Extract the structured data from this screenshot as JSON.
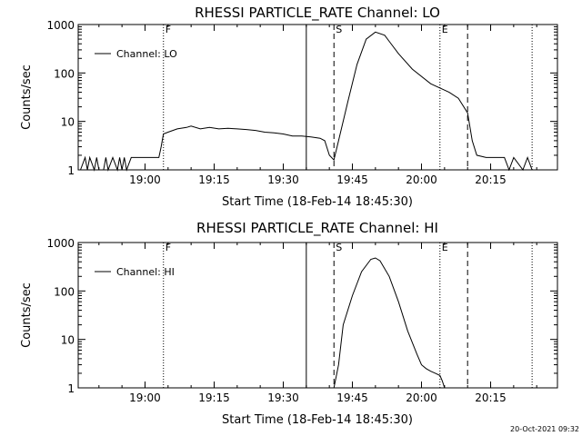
{
  "footer_timestamp": "20-Oct-2021 09:32",
  "chart_data": [
    {
      "type": "line",
      "title": "RHESSI PARTICLE_RATE Channel: LO",
      "xlabel": "Start Time (18-Feb-14 18:45:30)",
      "ylabel": "Counts/sec",
      "y_scale": "log",
      "ylim": [
        1,
        1000
      ],
      "xlim": [
        "18:45:30",
        "20:29:30"
      ],
      "x_ticks": [
        "19:00",
        "19:15",
        "19:30",
        "19:45",
        "20:00",
        "20:15"
      ],
      "y_ticks": [
        "1",
        "10",
        "100",
        "1000"
      ],
      "legend": {
        "label": "Channel: LO",
        "placement": "top-left"
      },
      "markers": [
        {
          "time": "19:04",
          "label": "F",
          "style": "dotted"
        },
        {
          "time": "19:35",
          "label": "",
          "style": "solid"
        },
        {
          "time": "19:41",
          "label": "S",
          "style": "dashed"
        },
        {
          "time": "20:04",
          "label": "E",
          "style": "dotted"
        },
        {
          "time": "20:10",
          "label": "",
          "style": "dashed"
        },
        {
          "time": "20:24",
          "label": "",
          "style": "dotted"
        }
      ],
      "series": [
        {
          "name": "Channel: LO",
          "x": [
            "18:45:30",
            "18:46:00",
            "18:47:00",
            "18:47:30",
            "18:48:00",
            "18:49:00",
            "18:49:30",
            "18:50:00",
            "18:51:00",
            "18:51:30",
            "18:52:00",
            "18:53:00",
            "18:54:00",
            "18:54:30",
            "18:55:00",
            "18:55:30",
            "18:56:00",
            "18:57:00",
            "18:58:00",
            "19:00:00",
            "19:03:00",
            "19:03:30",
            "19:04:00",
            "19:05:00",
            "19:07:00",
            "19:09:00",
            "19:10:00",
            "19:12:00",
            "19:14:00",
            "19:16:00",
            "19:18:00",
            "19:20:00",
            "19:22:00",
            "19:24:00",
            "19:26:00",
            "19:28:00",
            "19:30:00",
            "19:32:00",
            "19:34:00",
            "19:36:00",
            "19:38:00",
            "19:39:00",
            "19:40:00",
            "19:41:00",
            "19:42:00",
            "19:44:00",
            "19:46:00",
            "19:48:00",
            "19:50:00",
            "19:52:00",
            "19:53:00",
            "19:55:00",
            "19:58:00",
            "20:02:00",
            "20:06:00",
            "20:08:00",
            "20:10:00",
            "20:11:00",
            "20:12:00",
            "20:14:00",
            "20:16:00",
            "20:18:00",
            "20:19:00",
            "20:20:00",
            "20:22:00",
            "20:23:00",
            "20:24:00",
            "20:24:30"
          ],
          "y": [
            1,
            1,
            1.8,
            1,
            1.8,
            1,
            1.8,
            1,
            1,
            1.8,
            1,
            1.8,
            1,
            1.8,
            1,
            1.8,
            1,
            1.8,
            1.8,
            1.8,
            1.8,
            3,
            5.5,
            6,
            7,
            7.5,
            8,
            7,
            7.5,
            7,
            7.2,
            7,
            6.8,
            6.5,
            6,
            5.8,
            5.5,
            5,
            5,
            4.8,
            4.5,
            4,
            2,
            1.6,
            4,
            25,
            150,
            500,
            700,
            600,
            450,
            250,
            120,
            60,
            40,
            30,
            15,
            4,
            2,
            1.8,
            1.8,
            1.8,
            1,
            1.8,
            1,
            1.8,
            1,
            1
          ]
        }
      ]
    },
    {
      "type": "line",
      "title": "RHESSI PARTICLE_RATE Channel: HI",
      "xlabel": "Start Time (18-Feb-14 18:45:30)",
      "ylabel": "Counts/sec",
      "y_scale": "log",
      "ylim": [
        1,
        1000
      ],
      "xlim": [
        "18:45:30",
        "20:29:30"
      ],
      "x_ticks": [
        "19:00",
        "19:15",
        "19:30",
        "19:45",
        "20:00",
        "20:15"
      ],
      "y_ticks": [
        "1",
        "10",
        "100",
        "1000"
      ],
      "legend": {
        "label": "Channel: HI",
        "placement": "top-left"
      },
      "markers": [
        {
          "time": "19:04",
          "label": "F",
          "style": "dotted"
        },
        {
          "time": "19:35",
          "label": "",
          "style": "solid"
        },
        {
          "time": "19:41",
          "label": "S",
          "style": "dashed"
        },
        {
          "time": "20:04",
          "label": "E",
          "style": "dotted"
        },
        {
          "time": "20:10",
          "label": "",
          "style": "dashed"
        },
        {
          "time": "20:24",
          "label": "",
          "style": "dotted"
        }
      ],
      "series": [
        {
          "name": "Channel: HI",
          "x": [
            "19:41:00",
            "19:42:00",
            "19:43:00",
            "19:45:00",
            "19:47:00",
            "19:49:00",
            "19:50:00",
            "19:51:00",
            "19:53:00",
            "19:55:00",
            "19:57:00",
            "19:59:00",
            "20:00:00",
            "20:01:00",
            "20:02:00",
            "20:03:00",
            "20:04:00",
            "20:04:30",
            "20:05:00"
          ],
          "y": [
            1,
            3,
            20,
            80,
            250,
            450,
            480,
            420,
            200,
            60,
            15,
            5,
            3,
            2.5,
            2.2,
            2,
            1.8,
            1.4,
            1
          ]
        }
      ]
    }
  ]
}
